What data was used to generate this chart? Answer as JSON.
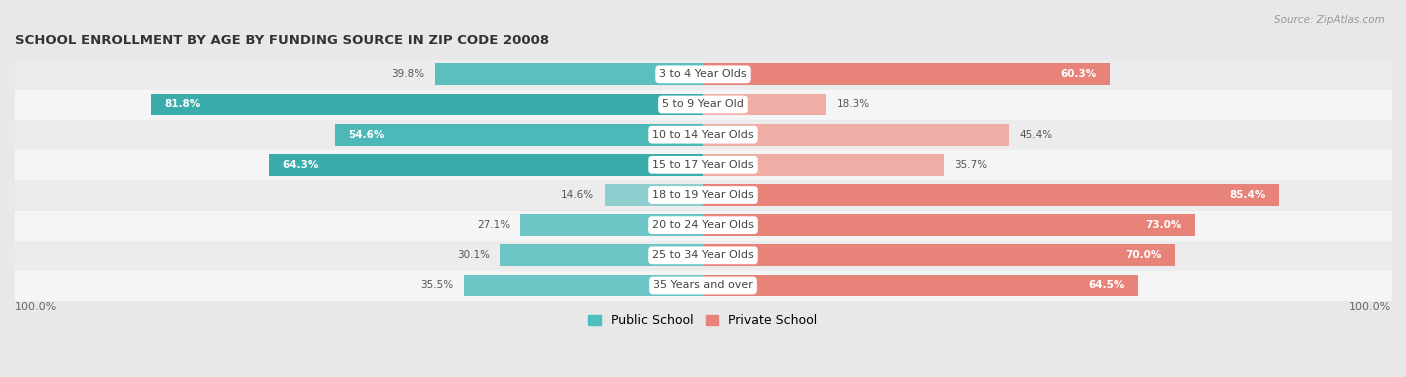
{
  "title": "SCHOOL ENROLLMENT BY AGE BY FUNDING SOURCE IN ZIP CODE 20008",
  "source": "Source: ZipAtlas.com",
  "categories": [
    "3 to 4 Year Olds",
    "5 to 9 Year Old",
    "10 to 14 Year Olds",
    "15 to 17 Year Olds",
    "18 to 19 Year Olds",
    "20 to 24 Year Olds",
    "25 to 34 Year Olds",
    "35 Years and over"
  ],
  "public_values": [
    39.8,
    81.8,
    54.6,
    64.3,
    14.6,
    27.1,
    30.1,
    35.5
  ],
  "private_values": [
    60.3,
    18.3,
    45.4,
    35.7,
    85.4,
    73.0,
    70.0,
    64.5
  ],
  "public_colors": [
    "#5BBFBF",
    "#3AACAC",
    "#4DB8B8",
    "#3AACAC",
    "#8ECECE",
    "#6EC5C5",
    "#6EC5C5",
    "#6EC5C5"
  ],
  "private_colors": [
    "#E8837A",
    "#F0ADA6",
    "#F0ADA6",
    "#F0ADA6",
    "#E8837A",
    "#E8837A",
    "#E8837A",
    "#E8837A"
  ],
  "public_color_swatch": "#4DBFBF",
  "private_color_swatch": "#E8837A",
  "legend_public": "Public School",
  "legend_private": "Private School",
  "x_left_label": "100.0%",
  "x_right_label": "100.0%",
  "row_bg_odd": "#ececec",
  "row_bg_even": "#f5f5f5"
}
